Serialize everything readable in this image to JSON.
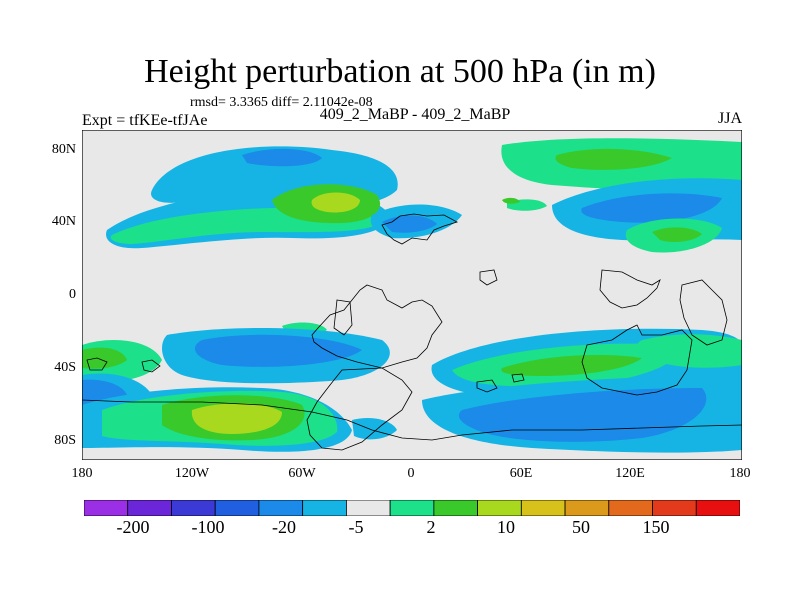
{
  "title": "Height perturbation at 500 hPa (in m)",
  "rmsd_text": "rmsd= 3.3365 diff= 2.11042e-08",
  "expt_text": "Expt = tfKEe-tfJAe",
  "center_label": "409_2_MaBP - 409_2_MaBP",
  "season": "JJA",
  "y_ticks": [
    "80N",
    "40N",
    "0",
    "40S",
    "80S"
  ],
  "x_ticks": [
    "180",
    "120W",
    "60W",
    "0",
    "60E",
    "120E",
    "180"
  ],
  "colorbar": {
    "colors": [
      "#9a2fe6",
      "#6b26d9",
      "#3c3ad6",
      "#1f5fe0",
      "#1b8ae8",
      "#16b4e4",
      "#e8e8e8",
      "#1ce08a",
      "#3ac92a",
      "#a8d91f",
      "#d7c21c",
      "#dc9a1c",
      "#e36a1c",
      "#e23a1a",
      "#e80f10"
    ],
    "labels": [
      "-200",
      "-100",
      "-20",
      "-5",
      "2",
      "10",
      "50",
      "150"
    ]
  }
}
